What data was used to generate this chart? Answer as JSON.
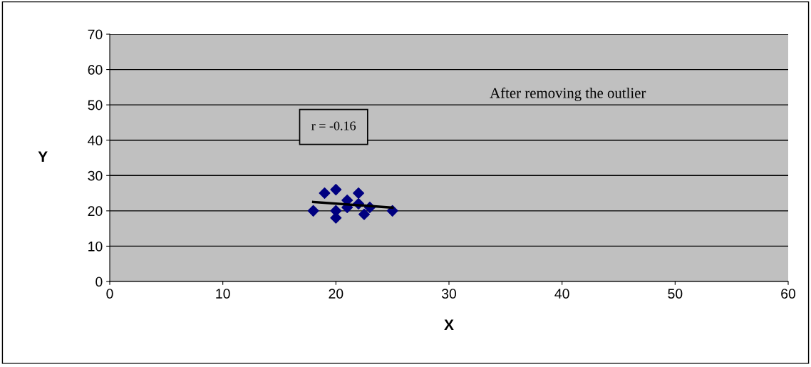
{
  "chart_data": {
    "type": "scatter",
    "xlabel": "X",
    "ylabel": "Y",
    "xlim": [
      0,
      60
    ],
    "ylim": [
      0,
      70
    ],
    "xticks": [
      0,
      10,
      20,
      30,
      40,
      50,
      60
    ],
    "yticks": [
      0,
      10,
      20,
      30,
      40,
      50,
      60,
      70
    ],
    "grid": "y",
    "legend": false,
    "annotations": [
      "After removing the outlier",
      "r = -0.16"
    ],
    "series": [
      {
        "color": "#000080",
        "marker": "diamond",
        "x": [
          18,
          19,
          20,
          20,
          20,
          21,
          21,
          22,
          22,
          22.5,
          23,
          25
        ],
        "values": [
          20,
          25,
          26,
          20,
          18,
          23,
          21,
          25,
          22,
          19,
          21,
          20
        ]
      },
      {
        "type": "line",
        "color": "#000000",
        "x": [
          18,
          25
        ],
        "values": [
          22.5,
          20.9
        ]
      }
    ]
  }
}
